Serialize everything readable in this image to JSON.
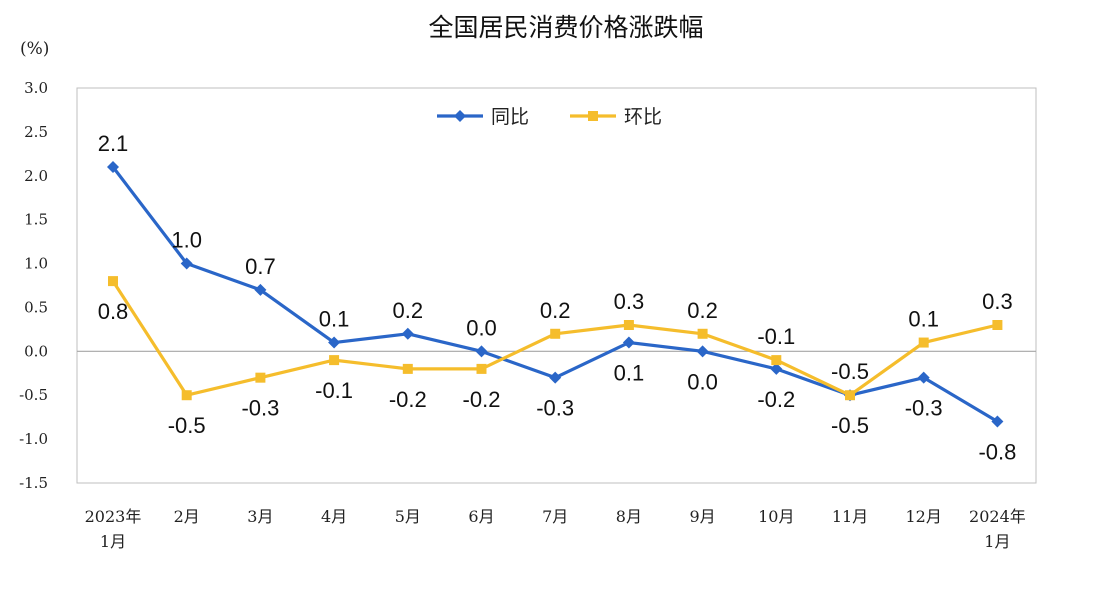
{
  "chart_data": {
    "type": "line",
    "title": "全国居民消费价格涨跌幅",
    "ylabel": "(%)",
    "xlabel": "",
    "ylim": [
      -1.5,
      3.0
    ],
    "yticks": [
      "3.0",
      "2.5",
      "2.0",
      "1.5",
      "1.0",
      "0.5",
      "0.0",
      "-0.5",
      "-1.0",
      "-1.5"
    ],
    "categories": [
      [
        "2023年",
        "1月"
      ],
      [
        "2月"
      ],
      [
        "3月"
      ],
      [
        "4月"
      ],
      [
        "5月"
      ],
      [
        "6月"
      ],
      [
        "7月"
      ],
      [
        "8月"
      ],
      [
        "9月"
      ],
      [
        "10月"
      ],
      [
        "11月"
      ],
      [
        "12月"
      ],
      [
        "2024年",
        "1月"
      ]
    ],
    "legend_position": "top-center",
    "grid": false,
    "series": [
      {
        "name": "同比",
        "color": "#2a66c8",
        "marker": "diamond",
        "values": [
          2.1,
          1.0,
          0.7,
          0.1,
          0.2,
          0.0,
          -0.3,
          0.1,
          0.0,
          -0.2,
          -0.5,
          -0.3,
          -0.8
        ],
        "labels": [
          "2.1",
          "1.0",
          "0.7",
          "0.1",
          "0.2",
          "0.0",
          "-0.3",
          "0.1",
          "0.0",
          "-0.2",
          "-0.5",
          "-0.3",
          "-0.8"
        ]
      },
      {
        "name": "环比",
        "color": "#f5bd2c",
        "marker": "square",
        "values": [
          0.8,
          -0.5,
          -0.3,
          -0.1,
          -0.2,
          -0.2,
          0.2,
          0.3,
          0.2,
          -0.1,
          -0.5,
          0.1,
          0.3
        ],
        "labels": [
          "0.8",
          "-0.5",
          "-0.3",
          "-0.1",
          "-0.2",
          "-0.2",
          "0.2",
          "0.3",
          "0.2",
          "-0.1",
          "-0.5",
          "0.1",
          "0.3"
        ]
      }
    ]
  }
}
